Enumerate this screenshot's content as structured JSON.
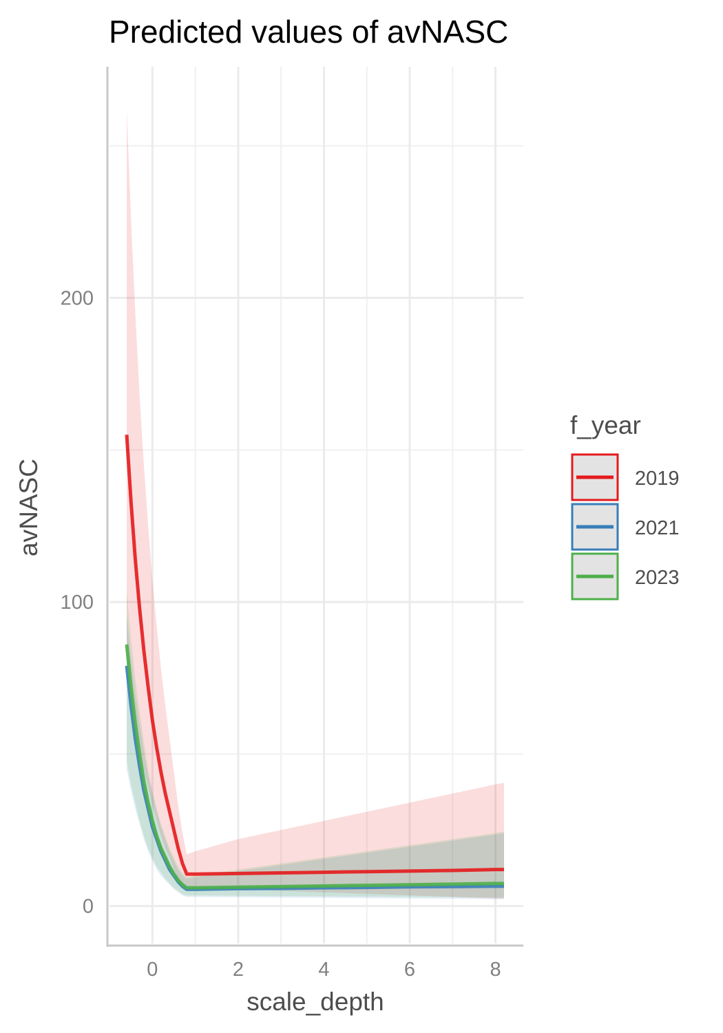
{
  "chart_data": {
    "type": "line",
    "title": "Predicted values of avNASC",
    "xlabel": "scale_depth",
    "ylabel": "avNASC",
    "xlim": [
      -1.05,
      8.65
    ],
    "ylim": [
      -13,
      276
    ],
    "x_ticks": [
      0,
      2,
      4,
      6,
      8
    ],
    "x_tick_labels": [
      "0",
      "2",
      "4",
      "6",
      "8"
    ],
    "y_ticks": [
      0,
      100,
      200
    ],
    "y_tick_labels": [
      "0",
      "100",
      "200"
    ],
    "grid": true,
    "legend": {
      "title": "f_year",
      "position": "right"
    },
    "series": [
      {
        "name": "2019",
        "color": "#e41a1c",
        "x": [
          -0.6,
          -0.5,
          -0.4,
          -0.3,
          -0.2,
          -0.1,
          0.0,
          0.1,
          0.2,
          0.3,
          0.4,
          0.5,
          0.6,
          0.7,
          0.8,
          1.0,
          2.0,
          3.0,
          4.0,
          5.0,
          6.0,
          7.0,
          8.0,
          8.2
        ],
        "y": [
          155,
          133,
          114,
          98,
          84,
          72,
          61,
          52,
          44,
          37,
          31,
          25,
          19,
          14,
          10.5,
          10.5,
          10.7,
          10.9,
          11.1,
          11.3,
          11.5,
          11.7,
          12.0,
          12.0
        ],
        "lower": [
          82,
          71,
          61,
          52,
          45,
          39,
          33,
          28,
          23,
          19,
          16,
          12,
          9,
          7,
          6,
          6,
          5.5,
          5,
          4.5,
          4,
          3.5,
          3,
          2.5,
          2.5
        ],
        "upper": [
          262,
          226,
          195,
          168,
          145,
          125,
          107,
          92,
          78,
          66,
          55,
          44,
          33,
          24,
          17,
          18,
          22,
          25,
          28,
          31,
          34,
          37,
          40,
          40.5
        ]
      },
      {
        "name": "2021",
        "color": "#377eb8",
        "x": [
          -0.6,
          -0.5,
          -0.4,
          -0.3,
          -0.2,
          -0.1,
          0.0,
          0.1,
          0.2,
          0.3,
          0.4,
          0.5,
          0.6,
          0.7,
          0.8,
          1.0,
          2.0,
          3.0,
          4.0,
          5.0,
          6.0,
          7.0,
          8.0,
          8.2
        ],
        "y": [
          79,
          66,
          55,
          46,
          38,
          32,
          26,
          22,
          18,
          15,
          12,
          10,
          8,
          6.5,
          5.5,
          5.5,
          5.7,
          5.8,
          6.0,
          6.1,
          6.3,
          6.4,
          6.5,
          6.5
        ],
        "lower": [
          45,
          38,
          32,
          27,
          22,
          18,
          15,
          12,
          10,
          8.5,
          7,
          5.5,
          4.5,
          3.5,
          3,
          3,
          2.9,
          2.8,
          2.7,
          2.6,
          2.5,
          2.4,
          2.3,
          2.3
        ],
        "upper": [
          96,
          82,
          70,
          60,
          51,
          43,
          37,
          31,
          26,
          22,
          18,
          15,
          12,
          10,
          9,
          9.5,
          11.5,
          13.5,
          15.5,
          17.5,
          19.5,
          21.5,
          23.5,
          24
        ]
      },
      {
        "name": "2023",
        "color": "#4daf4a",
        "x": [
          -0.6,
          -0.5,
          -0.4,
          -0.3,
          -0.2,
          -0.1,
          0.0,
          0.1,
          0.2,
          0.3,
          0.4,
          0.5,
          0.6,
          0.7,
          0.8,
          1.0,
          2.0,
          3.0,
          4.0,
          5.0,
          6.0,
          7.0,
          8.0,
          8.2
        ],
        "y": [
          86,
          72,
          60,
          50,
          41,
          34,
          28,
          23,
          19,
          16,
          13,
          10.5,
          8.5,
          7,
          6,
          6,
          6.2,
          6.4,
          6.6,
          6.8,
          7.0,
          7.2,
          7.4,
          7.4
        ],
        "lower": [
          48,
          40,
          34,
          28,
          23,
          19,
          16,
          13,
          11,
          9,
          7.5,
          6,
          5,
          4,
          3.5,
          3.5,
          3.4,
          3.3,
          3.2,
          3.1,
          3.0,
          2.9,
          2.8,
          2.8
        ],
        "upper": [
          104,
          88,
          75,
          64,
          54,
          45,
          38,
          32,
          27,
          23,
          19,
          16,
          13,
          11,
          9.5,
          10,
          12,
          14,
          16,
          18,
          20,
          22,
          24,
          24.5
        ]
      }
    ]
  }
}
